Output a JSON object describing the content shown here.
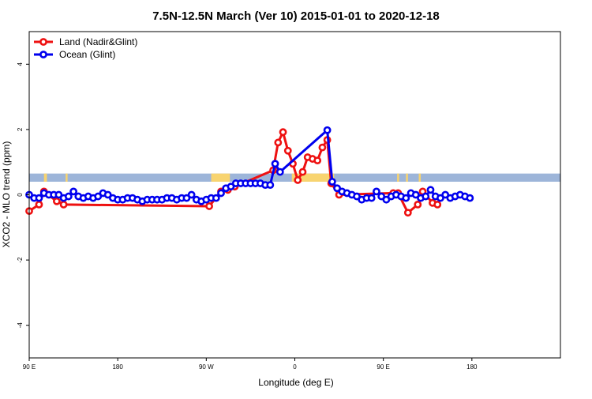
{
  "chart_data": {
    "type": "line",
    "title": "7.5N-12.5N March (Ver 10)   2015-01-01 to 2020-12-18",
    "xlabel": "Longitude (deg E)",
    "ylabel": "XCO2 - MLO trend (ppm)",
    "x_axis_note": "longitude increases eastward from 90E through 180, 90W, 0 and 90E back to 180 (540 degree span)",
    "xlim": [
      90,
      630
    ],
    "ylim": [
      -5,
      5
    ],
    "x_ticks": [
      {
        "value": 90,
        "label": "90 E"
      },
      {
        "value": 180,
        "label": "180"
      },
      {
        "value": 270,
        "label": "90 W"
      },
      {
        "value": 360,
        "label": "0"
      },
      {
        "value": 450,
        "label": "90 E"
      },
      {
        "value": 540,
        "label": "180"
      }
    ],
    "y_ticks": [
      {
        "value": -4,
        "label": "-4"
      },
      {
        "value": -2,
        "label": "-2"
      },
      {
        "value": 0,
        "label": "0"
      },
      {
        "value": 2,
        "label": "2"
      },
      {
        "value": 4,
        "label": "4"
      }
    ],
    "land_band": {
      "ymin": 0.4,
      "ymax": 0.65,
      "color": "#9db5d9",
      "land_color": "#f8d470",
      "land_segments": [
        [
          105,
          108
        ],
        [
          127,
          129
        ],
        [
          275,
          294
        ],
        [
          357,
          400
        ],
        [
          464,
          466
        ],
        [
          473,
          475
        ],
        [
          486,
          488
        ]
      ]
    },
    "legend": {
      "position": "top-left"
    },
    "series": [
      {
        "name": "Land (Nadir&Glint)",
        "color": "#ee1111",
        "points": [
          [
            90,
            -0.5
          ],
          [
            100,
            -0.3
          ],
          [
            105,
            0.1
          ],
          [
            118,
            -0.2
          ],
          [
            125,
            -0.3
          ],
          [
            273,
            -0.35
          ],
          [
            285,
            0.1
          ],
          [
            292,
            0.15
          ],
          [
            299,
            0.25
          ],
          [
            338,
            0.75
          ],
          [
            343,
            1.6
          ],
          [
            348,
            1.92
          ],
          [
            353,
            1.35
          ],
          [
            358,
            0.95
          ],
          [
            363,
            0.45
          ],
          [
            368,
            0.7
          ],
          [
            373,
            1.15
          ],
          [
            378,
            1.1
          ],
          [
            383,
            1.05
          ],
          [
            388,
            1.45
          ],
          [
            393,
            1.68
          ],
          [
            397,
            0.35
          ],
          [
            405,
            0.0
          ],
          [
            460,
            0.05
          ],
          [
            465,
            0.05
          ],
          [
            475,
            -0.55
          ],
          [
            485,
            -0.3
          ],
          [
            490,
            0.1
          ],
          [
            500,
            -0.25
          ],
          [
            505,
            -0.3
          ]
        ]
      },
      {
        "name": "Ocean (Glint)",
        "color": "#0000ee",
        "points": [
          [
            90,
            0.0
          ],
          [
            95,
            -0.1
          ],
          [
            100,
            -0.1
          ],
          [
            105,
            0.05
          ],
          [
            110,
            0.0
          ],
          [
            115,
            0.0
          ],
          [
            120,
            0.0
          ],
          [
            125,
            -0.1
          ],
          [
            130,
            -0.05
          ],
          [
            135,
            0.1
          ],
          [
            140,
            -0.05
          ],
          [
            145,
            -0.1
          ],
          [
            150,
            -0.05
          ],
          [
            155,
            -0.1
          ],
          [
            160,
            -0.05
          ],
          [
            165,
            0.05
          ],
          [
            170,
            0.0
          ],
          [
            175,
            -0.1
          ],
          [
            180,
            -0.15
          ],
          [
            185,
            -0.15
          ],
          [
            190,
            -0.1
          ],
          [
            195,
            -0.1
          ],
          [
            200,
            -0.15
          ],
          [
            205,
            -0.2
          ],
          [
            210,
            -0.15
          ],
          [
            215,
            -0.15
          ],
          [
            220,
            -0.15
          ],
          [
            225,
            -0.15
          ],
          [
            230,
            -0.1
          ],
          [
            235,
            -0.1
          ],
          [
            240,
            -0.15
          ],
          [
            245,
            -0.1
          ],
          [
            250,
            -0.1
          ],
          [
            255,
            0.0
          ],
          [
            260,
            -0.15
          ],
          [
            265,
            -0.2
          ],
          [
            270,
            -0.15
          ],
          [
            275,
            -0.1
          ],
          [
            280,
            -0.1
          ],
          [
            285,
            0.05
          ],
          [
            290,
            0.2
          ],
          [
            295,
            0.25
          ],
          [
            300,
            0.35
          ],
          [
            305,
            0.35
          ],
          [
            310,
            0.35
          ],
          [
            315,
            0.35
          ],
          [
            320,
            0.35
          ],
          [
            325,
            0.35
          ],
          [
            330,
            0.3
          ],
          [
            335,
            0.3
          ],
          [
            340,
            0.95
          ],
          [
            345,
            0.7
          ],
          [
            393,
            1.98
          ],
          [
            398,
            0.4
          ],
          [
            403,
            0.2
          ],
          [
            408,
            0.1
          ],
          [
            413,
            0.05
          ],
          [
            418,
            0.0
          ],
          [
            423,
            -0.05
          ],
          [
            428,
            -0.15
          ],
          [
            433,
            -0.1
          ],
          [
            438,
            -0.1
          ],
          [
            443,
            0.1
          ],
          [
            448,
            -0.05
          ],
          [
            453,
            -0.15
          ],
          [
            458,
            -0.05
          ],
          [
            463,
            0.0
          ],
          [
            468,
            -0.05
          ],
          [
            473,
            -0.1
          ],
          [
            478,
            0.05
          ],
          [
            483,
            0.0
          ],
          [
            488,
            -0.1
          ],
          [
            493,
            -0.05
          ],
          [
            498,
            0.15
          ],
          [
            503,
            -0.05
          ],
          [
            508,
            -0.1
          ],
          [
            513,
            0.0
          ],
          [
            518,
            -0.1
          ],
          [
            523,
            -0.05
          ],
          [
            528,
            0.0
          ],
          [
            533,
            -0.05
          ],
          [
            538,
            -0.1
          ]
        ]
      }
    ]
  }
}
